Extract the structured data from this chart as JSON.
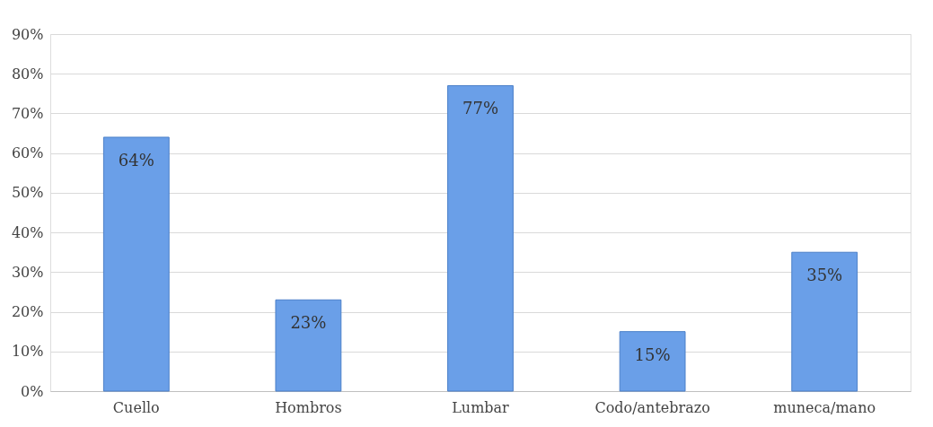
{
  "chart_data": {
    "type": "bar",
    "categories": [
      "Cuello",
      "Hombros",
      "Lumbar",
      "Codo/antebrazo",
      "muneca/mano"
    ],
    "values": [
      64,
      23,
      77,
      15,
      35
    ],
    "value_labels": [
      "64%",
      "23%",
      "77%",
      "15%",
      "35%"
    ],
    "color": "#6a9fe8",
    "ylim": [
      0,
      90
    ],
    "yticks": [
      {
        "value": 0,
        "label": "0%"
      },
      {
        "value": 10,
        "label": "10%"
      },
      {
        "value": 20,
        "label": "20%"
      },
      {
        "value": 30,
        "label": "30%"
      },
      {
        "value": 40,
        "label": "40%"
      },
      {
        "value": 50,
        "label": "50%"
      },
      {
        "value": 60,
        "label": "60%"
      },
      {
        "value": 70,
        "label": "70%"
      },
      {
        "value": 80,
        "label": "80%"
      },
      {
        "value": 90,
        "label": "90%"
      }
    ],
    "grid": "y"
  }
}
